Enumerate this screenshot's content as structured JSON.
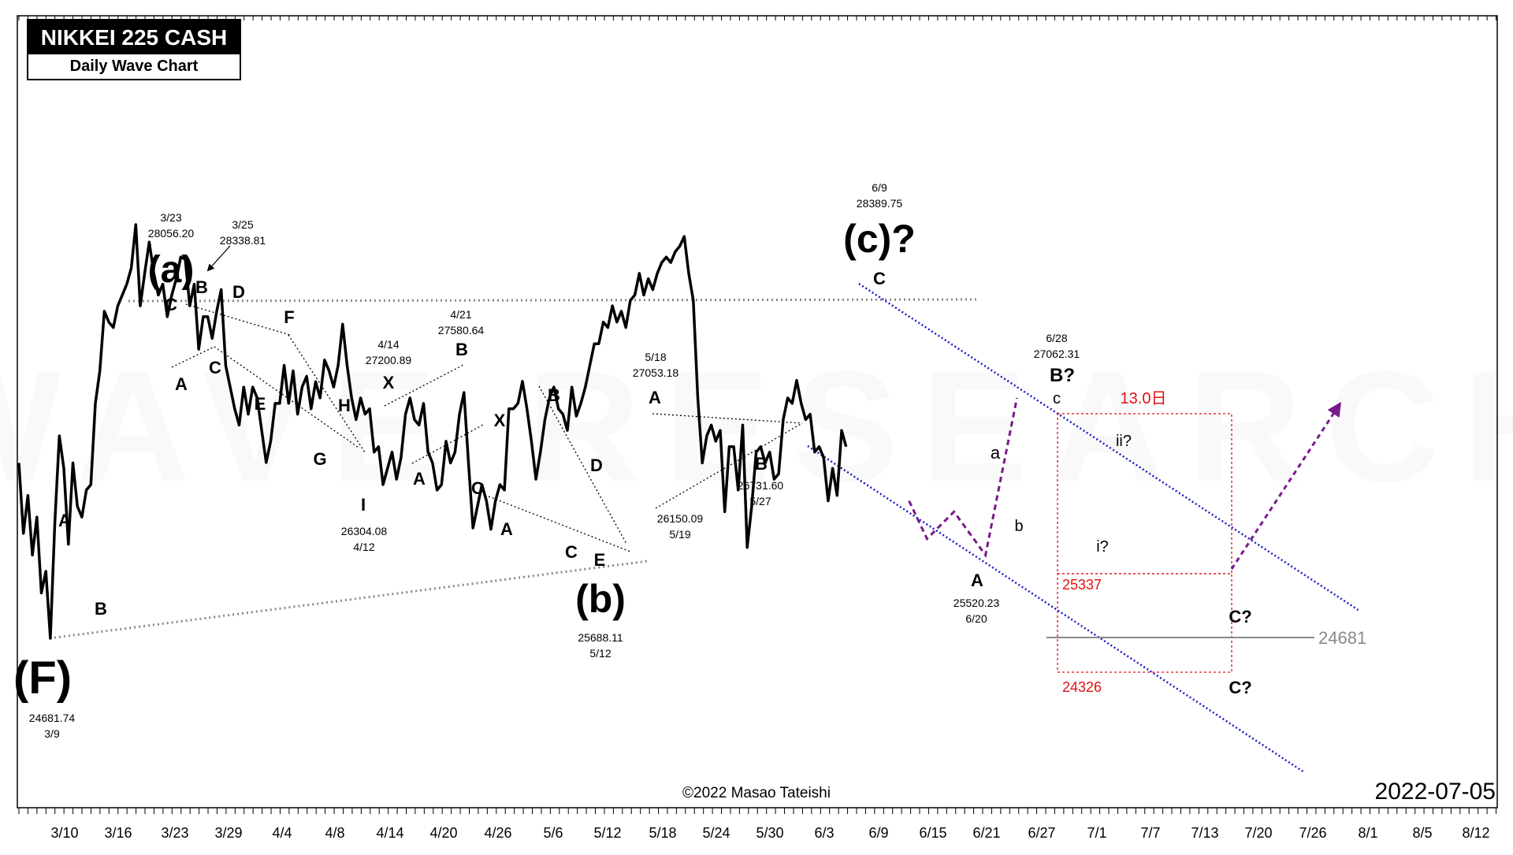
{
  "title": {
    "main": "NIKKEI 225 CASH",
    "sub": "Daily Wave Chart"
  },
  "watermark": "WAVE RESEARCH",
  "copyright": "©2022 Masao Tateishi",
  "date_stamp": "2022-07-05",
  "colors": {
    "price": "#000000",
    "channel": "#1a1acc",
    "forecast": "#7a1a8a",
    "target": "#e01010",
    "support_line": "#888888",
    "trendline": "#888888"
  },
  "chart_data": {
    "type": "line",
    "x_tick_labels": [
      "3/10",
      "3/16",
      "3/23",
      "3/29",
      "4/4",
      "4/8",
      "4/14",
      "4/20",
      "4/26",
      "5/6",
      "5/12",
      "5/18",
      "5/24",
      "5/30",
      "6/3",
      "6/9",
      "6/15",
      "6/21",
      "6/27",
      "7/1",
      "7/7",
      "7/13",
      "7/20",
      "7/26",
      "8/1",
      "8/5",
      "8/12"
    ],
    "series": [
      {
        "values": [
          26300,
          25650,
          26000,
          25450,
          25800,
          25100,
          25300,
          24681.74,
          25750,
          26550,
          26250,
          25550,
          26300,
          25900,
          25800,
          26050,
          26100,
          26850,
          27150,
          27700,
          27600,
          27550,
          27750,
          27850,
          27950,
          28100,
          28500,
          27750,
          28056.2,
          28338.81,
          28050,
          27850,
          27950,
          27650,
          27850,
          28000,
          28200,
          28180,
          27750,
          27950,
          27350,
          27650,
          27650,
          27450,
          27700,
          27900,
          27200,
          27000,
          26800,
          26650,
          27000,
          26750,
          27000,
          26900,
          26600,
          26304.08,
          26500,
          26850,
          26850,
          27200.89,
          26850,
          27150,
          26750,
          27000,
          27100,
          26800,
          27050,
          26900,
          27250,
          27150,
          27000,
          27200,
          27580.64,
          27200,
          26900,
          26700,
          26900,
          26750,
          26800,
          26400,
          26450,
          26100,
          26250,
          26400,
          26150,
          26350,
          26750,
          26900,
          26700,
          26650,
          26850,
          26400,
          26300,
          26050,
          26100,
          26500,
          26300,
          26400,
          26750,
          26950,
          26300,
          25700,
          25900,
          26100,
          25950,
          25688.11,
          25950,
          26100,
          26050,
          26800,
          26800,
          26850,
          27053.18,
          26800,
          26500,
          26150.09,
          26400,
          26700,
          26900,
          27000,
          26800,
          26750,
          26600,
          27000,
          26731.6,
          26850,
          27000,
          27200,
          27400,
          27400,
          27600,
          27550,
          27750,
          27600,
          27700,
          27550,
          27800,
          27850,
          28050,
          27850,
          28000,
          27900,
          28050,
          28150,
          28200,
          28150,
          28250,
          28300,
          28389.75,
          28050,
          27800,
          26900,
          26300,
          26550,
          26650,
          26500,
          26600,
          25850,
          26450,
          26450,
          26050,
          26650,
          25520.23,
          25900,
          26400,
          26450,
          26300,
          26400,
          26150,
          26200,
          26700,
          26900,
          26850,
          27062.31,
          26850,
          26700,
          26750,
          26400,
          26450,
          26350,
          25950,
          26250,
          26000,
          26600,
          26450
        ]
      },
      {
        "name": "forecast",
        "values": [
          25950,
          25600,
          25850,
          25450,
          26900
        ]
      }
    ],
    "annotations": [
      "(F)",
      "24681.74",
      "3/9",
      "A",
      "B",
      "(a)",
      "C",
      "B",
      "D",
      "A",
      "C",
      "E",
      "F",
      "G",
      "H",
      "I",
      "26304.08",
      "4/12",
      "3/23",
      "28056.20",
      "3/25",
      "28338.81",
      "4/14",
      "27200.89",
      "4/21",
      "27580.64",
      "X",
      "X",
      "A",
      "B",
      "C",
      "A",
      "B",
      "C",
      "D",
      "E",
      "(b)",
      "25688.11",
      "5/12",
      "5/18",
      "27053.18",
      "A",
      "26150.09",
      "5/19",
      "B",
      "26731.60",
      "5/27",
      "6/9",
      "28389.75",
      "(c)?",
      "C",
      "A",
      "25520.23",
      "6/20",
      "a",
      "b",
      "c",
      "B?",
      "6/28",
      "27062.31",
      "ii?",
      "i?",
      "13.0日",
      "25337",
      "24326",
      "C?",
      "C?",
      "24681"
    ],
    "levels": {
      "support": 24681,
      "target_upper": 25337,
      "target_lower": 24326
    },
    "grid": false
  }
}
